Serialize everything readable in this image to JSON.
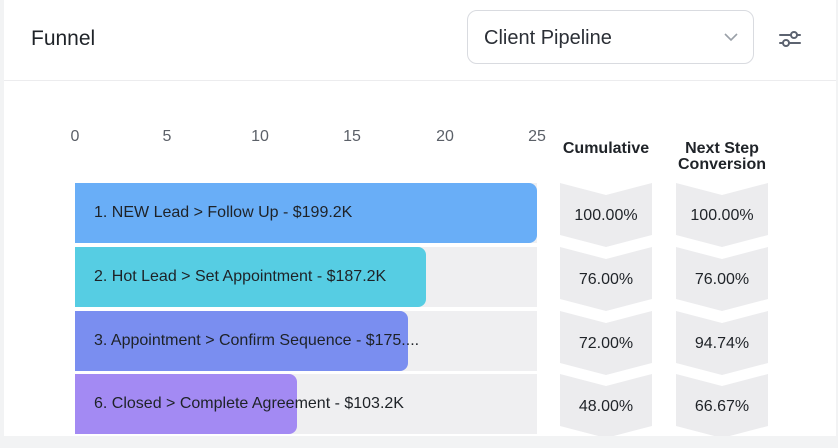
{
  "header": {
    "title": "Funnel",
    "pipeline_select": "Client Pipeline"
  },
  "icons": {
    "dropdown": "chevron-down-icon",
    "filter": "sliders-icon"
  },
  "colors": {
    "bar1": "#69aef7",
    "bar2": "#56cde3",
    "bar3": "#7a8ef0",
    "bar4": "#a38af3",
    "track": "#efeff1",
    "chevron": "#ececee"
  },
  "chart_data": {
    "type": "bar",
    "orientation": "horizontal",
    "xlim": [
      0,
      25
    ],
    "x_ticks": [
      "0",
      "5",
      "10",
      "15",
      "20",
      "25"
    ],
    "categories": [
      "1. NEW Lead > Follow Up - $199.2K",
      "2. Hot Lead > Set Appointment - $187.2K",
      "3. Appointment > Confirm Sequence - $175....",
      "6. Closed > Complete Agreement - $103.2K"
    ],
    "values": [
      25,
      19,
      18,
      12
    ]
  },
  "columns": {
    "cumulative_header": "Cumulative",
    "conversion_header_line1": "Next Step",
    "conversion_header_line2": "Conversion",
    "cumulative": [
      "100.00%",
      "76.00%",
      "72.00%",
      "48.00%"
    ],
    "conversion": [
      "100.00%",
      "76.00%",
      "94.74%",
      "66.67%"
    ]
  }
}
